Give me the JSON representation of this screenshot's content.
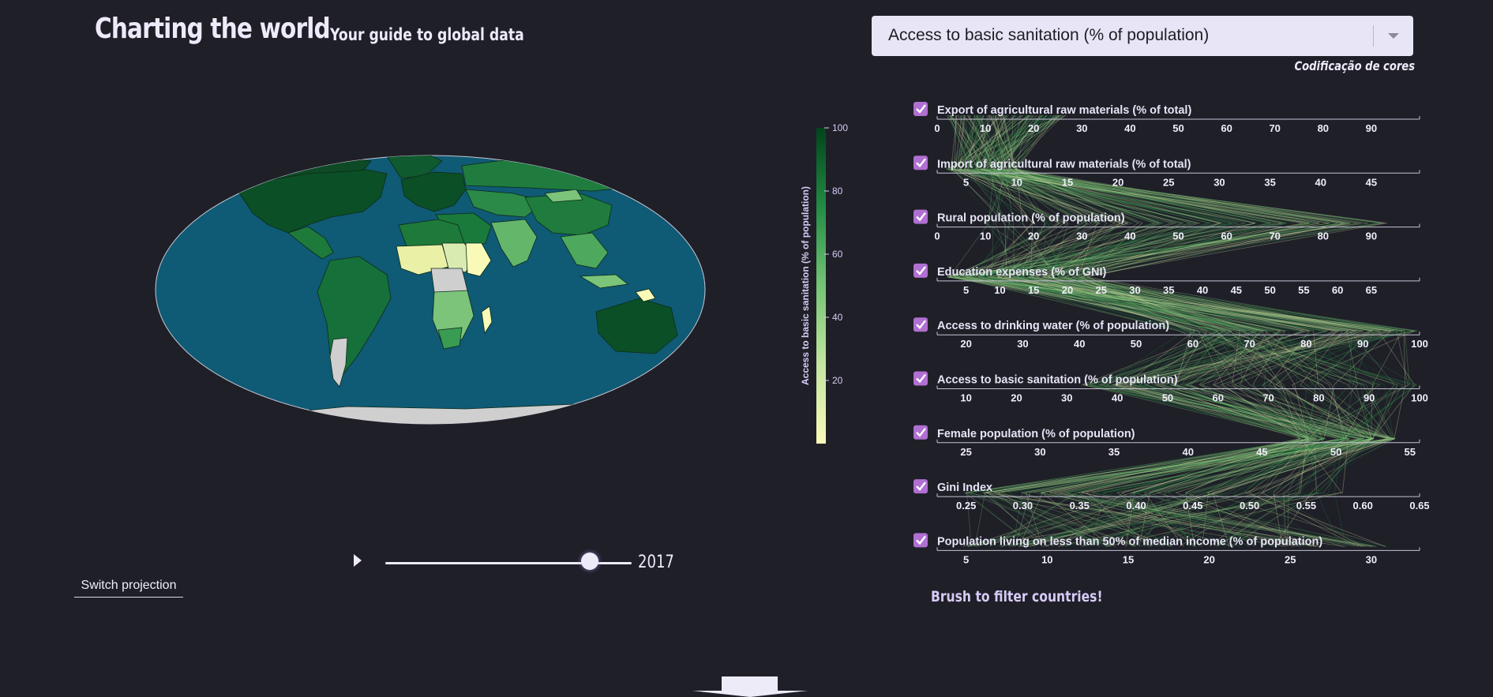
{
  "header": {
    "title": "Charting the world",
    "subtitle": "Your guide to global data"
  },
  "indicator_select": {
    "selected": "Access to basic sanitation (% of population)"
  },
  "color_coding_label": "Codificação de cores",
  "color_legend": {
    "label": "Access to basic sanitation (% of population)",
    "ticks": [
      "100",
      "80",
      "60",
      "40",
      "20"
    ],
    "scale_low_color": "#fafab8",
    "scale_high_color": "#00441b"
  },
  "map": {
    "ocean_color": "#0f5a74",
    "no_data_color": "#cfcfcf"
  },
  "timeline": {
    "year": "2017",
    "progress": 0.83
  },
  "buttons": {
    "switch_projection": "Switch projection"
  },
  "parallel_hint": "Brush to filter countries!",
  "parallel_axes": [
    {
      "label": "Export of agricultural raw materials (% of total)",
      "checked": true,
      "ticks": [
        "0",
        "10",
        "20",
        "30",
        "40",
        "50",
        "60",
        "70",
        "80",
        "90"
      ]
    },
    {
      "label": "Import of agricultural raw materials (% of total)",
      "checked": true,
      "ticks": [
        "5",
        "10",
        "15",
        "20",
        "25",
        "30",
        "35",
        "40",
        "45"
      ]
    },
    {
      "label": "Rural population (% of population)",
      "checked": true,
      "ticks": [
        "0",
        "10",
        "20",
        "30",
        "40",
        "50",
        "60",
        "70",
        "80",
        "90"
      ]
    },
    {
      "label": "Education expenses (% of GNI)",
      "checked": true,
      "ticks": [
        "5",
        "10",
        "15",
        "20",
        "25",
        "30",
        "35",
        "40",
        "45",
        "50",
        "55",
        "60",
        "65"
      ]
    },
    {
      "label": "Access to drinking water (% of population)",
      "checked": true,
      "ticks": [
        "20",
        "30",
        "40",
        "50",
        "60",
        "70",
        "80",
        "90",
        "100"
      ]
    },
    {
      "label": "Access to basic sanitation (% of population)",
      "checked": true,
      "ticks": [
        "10",
        "20",
        "30",
        "40",
        "50",
        "60",
        "70",
        "80",
        "90",
        "100"
      ]
    },
    {
      "label": "Female population (% of population)",
      "checked": true,
      "ticks": [
        "25",
        "30",
        "35",
        "40",
        "45",
        "50",
        "55"
      ]
    },
    {
      "label": "Gini Index",
      "checked": true,
      "ticks": [
        "0.25",
        "0.30",
        "0.35",
        "0.40",
        "0.45",
        "0.50",
        "0.55",
        "0.60",
        "0.65"
      ]
    },
    {
      "label": "Population living on less than 50% of median income (% of population)",
      "checked": true,
      "ticks": [
        "5",
        "10",
        "15",
        "20",
        "25",
        "30"
      ]
    }
  ]
}
